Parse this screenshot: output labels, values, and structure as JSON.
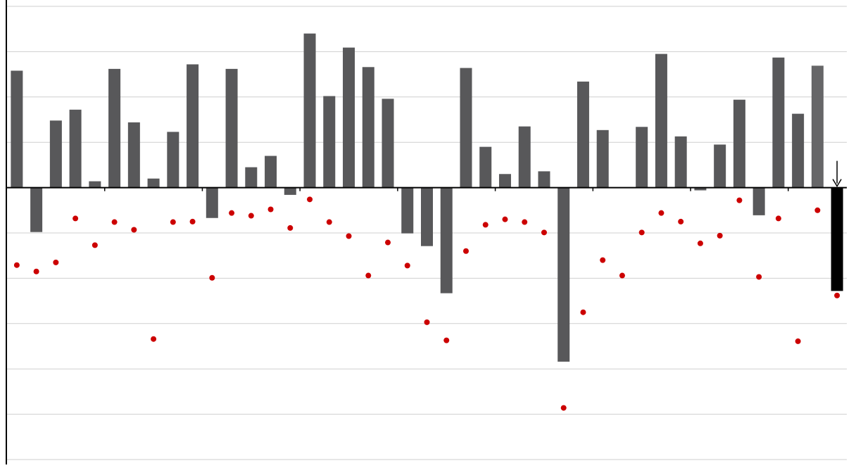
{
  "chart_data": {
    "type": "bar",
    "ylim": [
      -6,
      4
    ],
    "yticks": [
      -6,
      -5,
      -4,
      -3,
      -2,
      -1,
      0,
      1,
      2,
      3,
      4
    ],
    "grid": true,
    "series": [
      {
        "type": "bar",
        "color": "#58585a",
        "colors": [
          "#58585a",
          "#58585a",
          "#58585a",
          "#58585a",
          "#58585a",
          "#58585a",
          "#58585a",
          "#58585a",
          "#58585a",
          "#58585a",
          "#58585a",
          "#58585a",
          "#58585a",
          "#58585a",
          "#58585a",
          "#58585a",
          "#58585a",
          "#58585a",
          "#58585a",
          "#58585a",
          "#58585a",
          "#58585a",
          "#58585a",
          "#58585a",
          "#58585a",
          "#58585a",
          "#58585a",
          "#58585a",
          "#58585a",
          "#58585a",
          "#58585a",
          "#58585a",
          "#58585a",
          "#58585a",
          "#58585a",
          "#58585a",
          "#58585a",
          "#58585a",
          "#58585a",
          "#58585a",
          "#58585a",
          "#666668",
          "#000000"
        ],
        "values": [
          2.58,
          -0.98,
          1.48,
          1.72,
          0.14,
          2.62,
          1.44,
          0.2,
          1.23,
          2.72,
          -0.67,
          2.62,
          0.45,
          0.7,
          -0.16,
          3.4,
          2.02,
          3.09,
          2.66,
          1.96,
          -1.01,
          -1.29,
          -2.33,
          2.64,
          0.9,
          0.3,
          1.35,
          0.36,
          -3.84,
          2.34,
          1.27,
          0,
          1.34,
          2.95,
          1.13,
          -0.06,
          0.95,
          1.94,
          -0.61,
          2.87,
          1.63,
          2.69,
          -2.28
        ]
      },
      {
        "type": "scatter",
        "color": "#cc0000",
        "values": [
          -1.71,
          -1.85,
          -1.65,
          -0.68,
          -1.27,
          -0.76,
          -0.93,
          -3.34,
          -0.76,
          -0.75,
          -1.99,
          -0.56,
          -0.62,
          -0.48,
          -0.89,
          -0.26,
          -0.76,
          -1.07,
          -1.94,
          -1.21,
          -1.72,
          -2.97,
          -3.37,
          -1.4,
          -0.82,
          -0.7,
          -0.76,
          -0.99,
          -4.86,
          -2.75,
          -1.6,
          -1.94,
          -0.99,
          -0.56,
          -0.75,
          -1.23,
          -1.06,
          -0.28,
          -1.97,
          -0.68,
          -3.39,
          -0.5,
          -2.38
        ]
      }
    ]
  }
}
